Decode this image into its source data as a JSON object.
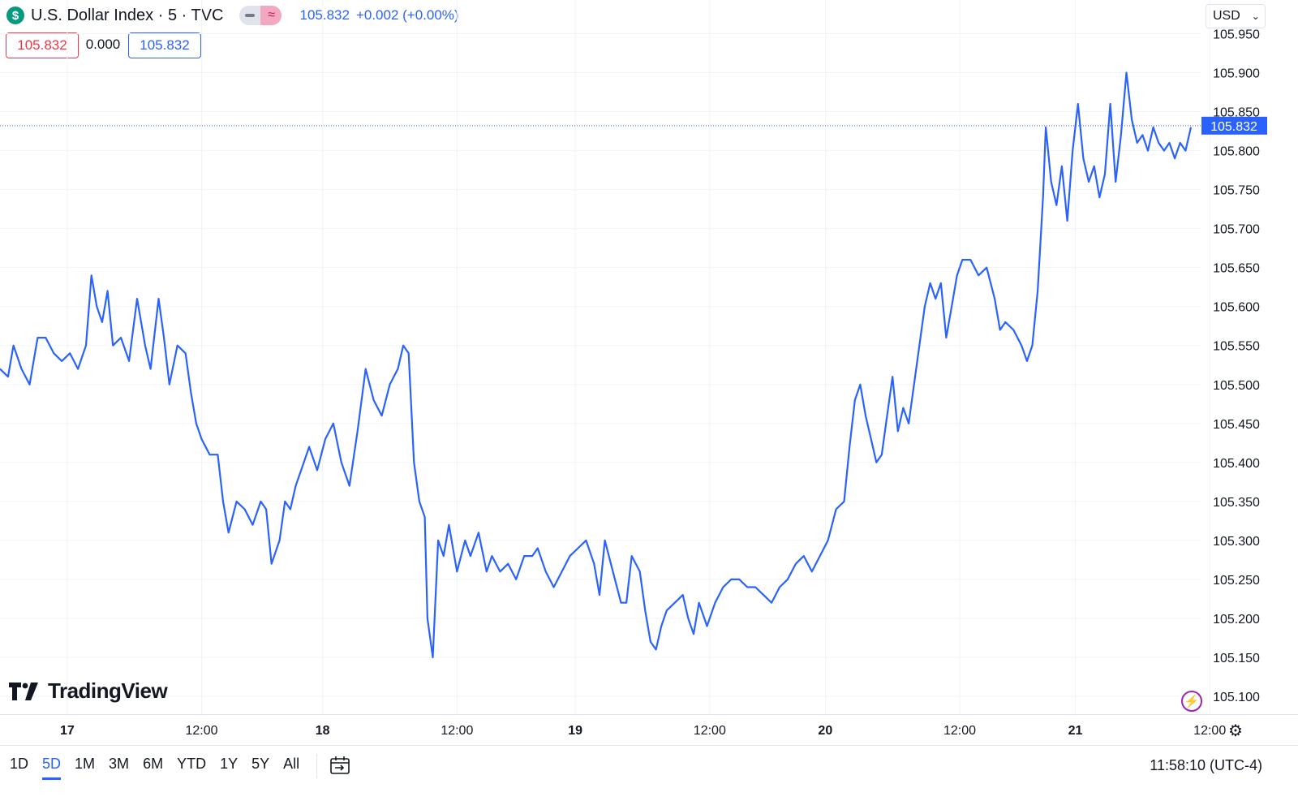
{
  "header": {
    "symbol_icon": "$",
    "title": "U.S. Dollar Index · 5 · TVC",
    "last": "105.832",
    "change": "+0.002 (+0.00%)",
    "pill_icon": "≈"
  },
  "ohlc_boxes": {
    "left": "105.832",
    "middle": "0.000",
    "right": "105.832"
  },
  "currency": {
    "label": "USD",
    "chevron": "⌄"
  },
  "brand": "TradingView",
  "footer": {
    "ranges": [
      "1D",
      "5D",
      "1M",
      "3M",
      "6M",
      "YTD",
      "1Y",
      "5Y",
      "All"
    ],
    "active_range": "5D",
    "clock": "11:58:10 (UTC-4)"
  },
  "colors": {
    "line": "#2962ff",
    "grid": "#f0f3fa",
    "text": "#131722",
    "down": "#f23645",
    "accent": "#9c27b0"
  },
  "icons": {
    "settings": "gear-icon",
    "alert": "lightning-icon",
    "date_range": "calendar-icon"
  },
  "chart_data": {
    "type": "line",
    "ylim": [
      105.1,
      105.95
    ],
    "y_ticks": [
      "105.100",
      "105.150",
      "105.200",
      "105.250",
      "105.300",
      "105.350",
      "105.400",
      "105.450",
      "105.500",
      "105.550",
      "105.600",
      "105.650",
      "105.700",
      "105.750",
      "105.800",
      "105.850",
      "105.900",
      "105.950"
    ],
    "x_ticks": [
      {
        "t": 0.5,
        "label": "17"
      },
      {
        "t": 1.5,
        "label": "12:00"
      },
      {
        "t": 2.4,
        "label": "18"
      },
      {
        "t": 3.4,
        "label": "12:00"
      },
      {
        "t": 4.28,
        "label": "19"
      },
      {
        "t": 5.28,
        "label": "12:00"
      },
      {
        "t": 6.14,
        "label": "20"
      },
      {
        "t": 7.14,
        "label": "12:00"
      },
      {
        "t": 8.0,
        "label": "21"
      },
      {
        "t": 9.0,
        "label": "12:00"
      }
    ],
    "current_value": "105.832",
    "current_value_num": 105.832,
    "series": [
      {
        "points": [
          [
            0.0,
            105.52
          ],
          [
            0.06,
            105.51
          ],
          [
            0.1,
            105.55
          ],
          [
            0.16,
            105.52
          ],
          [
            0.22,
            105.5
          ],
          [
            0.28,
            105.56
          ],
          [
            0.34,
            105.56
          ],
          [
            0.4,
            105.54
          ],
          [
            0.46,
            105.53
          ],
          [
            0.52,
            105.54
          ],
          [
            0.58,
            105.52
          ],
          [
            0.64,
            105.55
          ],
          [
            0.68,
            105.64
          ],
          [
            0.72,
            105.6
          ],
          [
            0.76,
            105.58
          ],
          [
            0.8,
            105.62
          ],
          [
            0.84,
            105.55
          ],
          [
            0.9,
            105.56
          ],
          [
            0.96,
            105.53
          ],
          [
            1.02,
            105.61
          ],
          [
            1.08,
            105.55
          ],
          [
            1.12,
            105.52
          ],
          [
            1.18,
            105.61
          ],
          [
            1.22,
            105.56
          ],
          [
            1.26,
            105.5
          ],
          [
            1.32,
            105.55
          ],
          [
            1.38,
            105.54
          ],
          [
            1.42,
            105.49
          ],
          [
            1.46,
            105.45
          ],
          [
            1.5,
            105.43
          ],
          [
            1.56,
            105.41
          ],
          [
            1.62,
            105.41
          ],
          [
            1.66,
            105.35
          ],
          [
            1.7,
            105.31
          ],
          [
            1.76,
            105.35
          ],
          [
            1.82,
            105.34
          ],
          [
            1.88,
            105.32
          ],
          [
            1.94,
            105.35
          ],
          [
            1.98,
            105.34
          ],
          [
            2.02,
            105.27
          ],
          [
            2.08,
            105.3
          ],
          [
            2.12,
            105.35
          ],
          [
            2.16,
            105.34
          ],
          [
            2.2,
            105.37
          ],
          [
            2.26,
            105.4
          ],
          [
            2.3,
            105.42
          ],
          [
            2.36,
            105.39
          ],
          [
            2.42,
            105.43
          ],
          [
            2.48,
            105.45
          ],
          [
            2.54,
            105.4
          ],
          [
            2.6,
            105.37
          ],
          [
            2.66,
            105.44
          ],
          [
            2.72,
            105.52
          ],
          [
            2.78,
            105.48
          ],
          [
            2.84,
            105.46
          ],
          [
            2.9,
            105.5
          ],
          [
            2.96,
            105.52
          ],
          [
            3.0,
            105.55
          ],
          [
            3.04,
            105.54
          ],
          [
            3.08,
            105.4
          ],
          [
            3.12,
            105.35
          ],
          [
            3.16,
            105.33
          ],
          [
            3.18,
            105.2
          ],
          [
            3.22,
            105.15
          ],
          [
            3.26,
            105.3
          ],
          [
            3.3,
            105.28
          ],
          [
            3.34,
            105.32
          ],
          [
            3.4,
            105.26
          ],
          [
            3.46,
            105.3
          ],
          [
            3.5,
            105.28
          ],
          [
            3.56,
            105.31
          ],
          [
            3.62,
            105.26
          ],
          [
            3.66,
            105.28
          ],
          [
            3.72,
            105.26
          ],
          [
            3.78,
            105.27
          ],
          [
            3.84,
            105.25
          ],
          [
            3.9,
            105.28
          ],
          [
            3.96,
            105.28
          ],
          [
            4.0,
            105.29
          ],
          [
            4.06,
            105.26
          ],
          [
            4.12,
            105.24
          ],
          [
            4.18,
            105.26
          ],
          [
            4.24,
            105.28
          ],
          [
            4.3,
            105.29
          ],
          [
            4.36,
            105.3
          ],
          [
            4.42,
            105.27
          ],
          [
            4.46,
            105.23
          ],
          [
            4.5,
            105.3
          ],
          [
            4.56,
            105.26
          ],
          [
            4.62,
            105.22
          ],
          [
            4.66,
            105.22
          ],
          [
            4.7,
            105.28
          ],
          [
            4.76,
            105.26
          ],
          [
            4.8,
            105.21
          ],
          [
            4.84,
            105.17
          ],
          [
            4.88,
            105.16
          ],
          [
            4.92,
            105.19
          ],
          [
            4.96,
            105.21
          ],
          [
            5.02,
            105.22
          ],
          [
            5.08,
            105.23
          ],
          [
            5.12,
            105.2
          ],
          [
            5.16,
            105.18
          ],
          [
            5.2,
            105.22
          ],
          [
            5.26,
            105.19
          ],
          [
            5.32,
            105.22
          ],
          [
            5.38,
            105.24
          ],
          [
            5.44,
            105.25
          ],
          [
            5.5,
            105.25
          ],
          [
            5.56,
            105.24
          ],
          [
            5.62,
            105.24
          ],
          [
            5.68,
            105.23
          ],
          [
            5.74,
            105.22
          ],
          [
            5.8,
            105.24
          ],
          [
            5.86,
            105.25
          ],
          [
            5.92,
            105.27
          ],
          [
            5.98,
            105.28
          ],
          [
            6.04,
            105.26
          ],
          [
            6.1,
            105.28
          ],
          [
            6.16,
            105.3
          ],
          [
            6.22,
            105.34
          ],
          [
            6.28,
            105.35
          ],
          [
            6.32,
            105.42
          ],
          [
            6.36,
            105.48
          ],
          [
            6.4,
            105.5
          ],
          [
            6.44,
            105.46
          ],
          [
            6.48,
            105.43
          ],
          [
            6.52,
            105.4
          ],
          [
            6.56,
            105.41
          ],
          [
            6.6,
            105.46
          ],
          [
            6.64,
            105.51
          ],
          [
            6.68,
            105.44
          ],
          [
            6.72,
            105.47
          ],
          [
            6.76,
            105.45
          ],
          [
            6.8,
            105.5
          ],
          [
            6.84,
            105.55
          ],
          [
            6.88,
            105.6
          ],
          [
            6.92,
            105.63
          ],
          [
            6.96,
            105.61
          ],
          [
            7.0,
            105.63
          ],
          [
            7.04,
            105.56
          ],
          [
            7.08,
            105.6
          ],
          [
            7.12,
            105.64
          ],
          [
            7.16,
            105.66
          ],
          [
            7.22,
            105.66
          ],
          [
            7.28,
            105.64
          ],
          [
            7.34,
            105.65
          ],
          [
            7.4,
            105.61
          ],
          [
            7.44,
            105.57
          ],
          [
            7.48,
            105.58
          ],
          [
            7.54,
            105.57
          ],
          [
            7.6,
            105.55
          ],
          [
            7.64,
            105.53
          ],
          [
            7.68,
            105.55
          ],
          [
            7.72,
            105.62
          ],
          [
            7.74,
            105.68
          ],
          [
            7.76,
            105.74
          ],
          [
            7.78,
            105.83
          ],
          [
            7.82,
            105.76
          ],
          [
            7.86,
            105.73
          ],
          [
            7.9,
            105.78
          ],
          [
            7.94,
            105.71
          ],
          [
            7.98,
            105.8
          ],
          [
            8.02,
            105.86
          ],
          [
            8.06,
            105.79
          ],
          [
            8.1,
            105.76
          ],
          [
            8.14,
            105.78
          ],
          [
            8.18,
            105.74
          ],
          [
            8.22,
            105.77
          ],
          [
            8.26,
            105.86
          ],
          [
            8.3,
            105.76
          ],
          [
            8.34,
            105.82
          ],
          [
            8.38,
            105.9
          ],
          [
            8.42,
            105.84
          ],
          [
            8.46,
            105.81
          ],
          [
            8.5,
            105.82
          ],
          [
            8.54,
            105.8
          ],
          [
            8.58,
            105.83
          ],
          [
            8.62,
            105.81
          ],
          [
            8.66,
            105.8
          ],
          [
            8.7,
            105.81
          ],
          [
            8.74,
            105.79
          ],
          [
            8.78,
            105.81
          ],
          [
            8.82,
            105.8
          ],
          [
            8.86,
            105.83
          ]
        ]
      }
    ]
  }
}
